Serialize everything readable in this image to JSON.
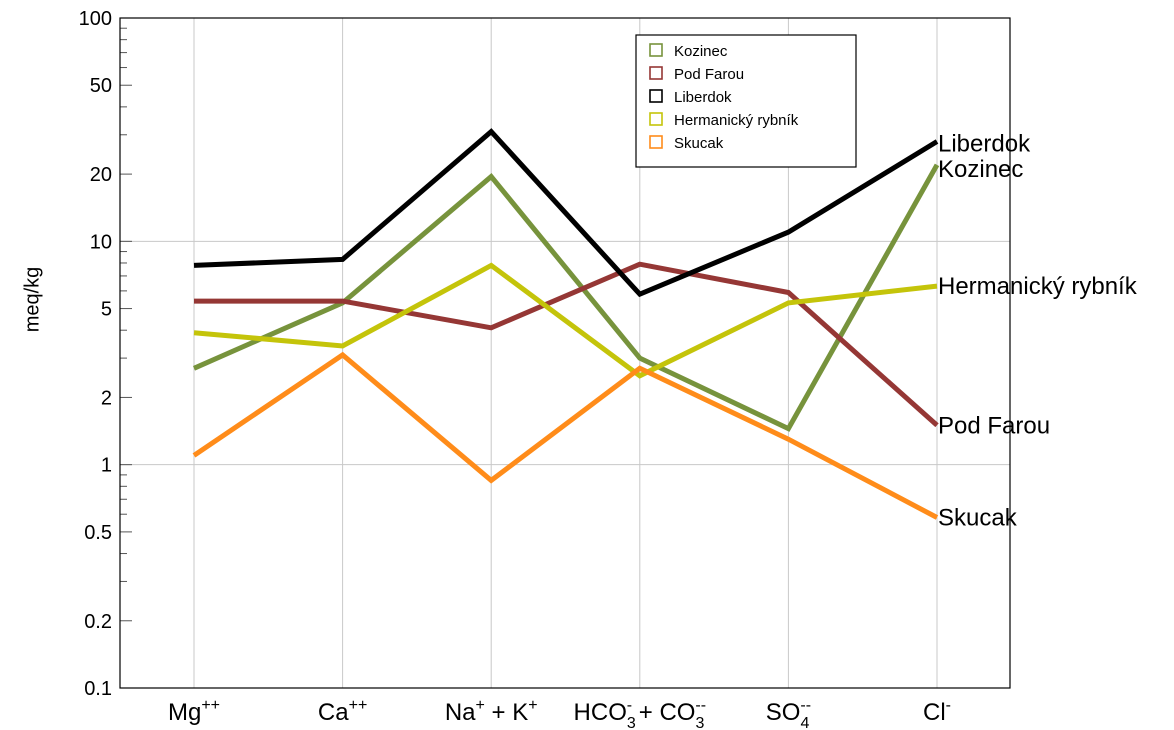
{
  "chart_data": {
    "type": "line",
    "ylabel": "meq/kg",
    "yscale": "log",
    "ylim": [
      0.1,
      100
    ],
    "yticks": [
      "0.1",
      "0.2",
      "0.5",
      "1",
      "2",
      "5",
      "10",
      "20",
      "50",
      "100"
    ],
    "ytick_values": [
      0.1,
      0.2,
      0.5,
      1,
      2,
      5,
      10,
      20,
      50,
      100
    ],
    "categories": [
      {
        "base": "Mg",
        "sup": "++",
        "sub": "",
        "tail": ""
      },
      {
        "base": "Ca",
        "sup": "++",
        "sub": "",
        "tail": ""
      },
      {
        "base": "Na",
        "sup": "+",
        "sub": "",
        "tail": " + K",
        "tail_sup": "+"
      },
      {
        "base": "HCO",
        "sup": "-",
        "sub": "3",
        "tail": " + CO",
        "tail_sup": "--",
        "tail_sub": "3"
      },
      {
        "base": "SO",
        "sup": "--",
        "sub": "4",
        "tail": ""
      },
      {
        "base": "Cl",
        "sup": "-",
        "sub": "",
        "tail": ""
      }
    ],
    "series": [
      {
        "name": "Kozinec",
        "color": "#77933c",
        "values": [
          2.7,
          5.3,
          19.5,
          3.0,
          1.45,
          22
        ]
      },
      {
        "name": "Pod Farou",
        "color": "#953735",
        "values": [
          5.4,
          5.4,
          4.1,
          7.9,
          5.9,
          1.5
        ]
      },
      {
        "name": "Liberdok",
        "color": "#000000",
        "values": [
          7.8,
          8.3,
          31,
          5.8,
          11,
          28
        ]
      },
      {
        "name": "Hermanický rybník",
        "color": "#c4c40a",
        "values": [
          3.9,
          3.4,
          7.8,
          2.5,
          5.3,
          6.3
        ]
      },
      {
        "name": "Skucak",
        "color": "#ff8c1a",
        "values": [
          1.1,
          3.1,
          0.85,
          2.7,
          1.3,
          0.58
        ]
      }
    ],
    "end_labels": [
      "Liberdok",
      "Kozinec",
      "Hermanický rybník",
      "Pod Farou",
      "Skucak"
    ],
    "grid": true,
    "legend_position": "top-right"
  }
}
